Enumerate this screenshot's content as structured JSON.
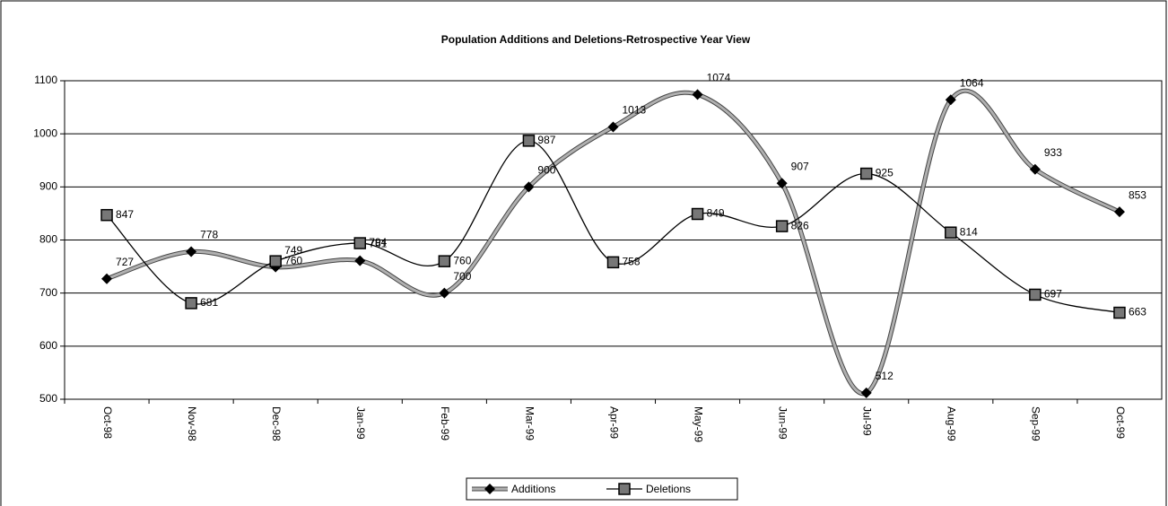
{
  "chart_data": {
    "type": "line",
    "title": "Population Additions and Deletions-Retrospective Year View",
    "categories": [
      "Oct-98",
      "Nov-98",
      "Dec-98",
      "Jan-99",
      "Feb-99",
      "Mar-99",
      "Apr-99",
      "May-99",
      "Jun-99",
      "Jul-99",
      "Aug-99",
      "Sep-99",
      "Oct-99"
    ],
    "series": [
      {
        "name": "Additions",
        "color": "#b0b0b0",
        "marker": "diamond",
        "values": [
          727,
          778,
          749,
          761,
          700,
          900,
          1013,
          1074,
          907,
          512,
          1064,
          933,
          853
        ]
      },
      {
        "name": "Deletions",
        "color": "#000000",
        "marker": "square",
        "values": [
          847,
          681,
          760,
          794,
          760,
          987,
          758,
          849,
          826,
          925,
          814,
          697,
          663
        ]
      }
    ],
    "ylim": [
      500,
      1100
    ],
    "yticks": [
      500,
      600,
      700,
      800,
      900,
      1000,
      1100
    ],
    "grid": true,
    "smooth": true,
    "legend": "bottom"
  }
}
